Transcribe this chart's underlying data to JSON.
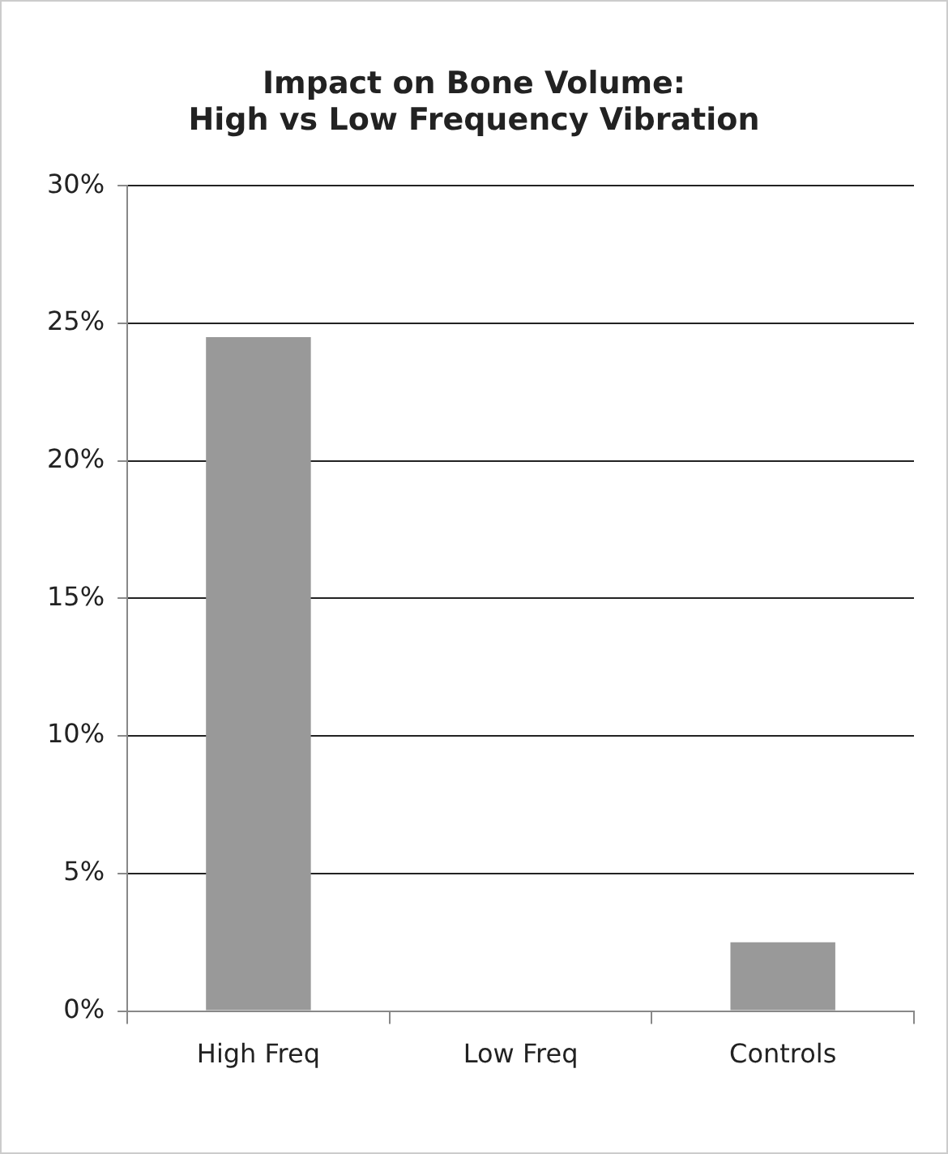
{
  "chart_data": {
    "type": "bar",
    "title": [
      "Impact on Bone Volume:",
      "High vs Low Frequency Vibration"
    ],
    "categories": [
      "High Freq",
      "Low Freq",
      "Controls"
    ],
    "values": [
      24.5,
      0,
      2.5
    ],
    "color": "#999999",
    "ylim": [
      0,
      30
    ],
    "yticks": [
      {
        "value": 0,
        "label": "0%"
      },
      {
        "value": 5,
        "label": "5%"
      },
      {
        "value": 10,
        "label": "10%"
      },
      {
        "value": 15,
        "label": "15%"
      },
      {
        "value": 20,
        "label": "20%"
      },
      {
        "value": 25,
        "label": "25%"
      },
      {
        "value": 30,
        "label": "30%"
      }
    ],
    "grid": "y",
    "legend": false
  }
}
